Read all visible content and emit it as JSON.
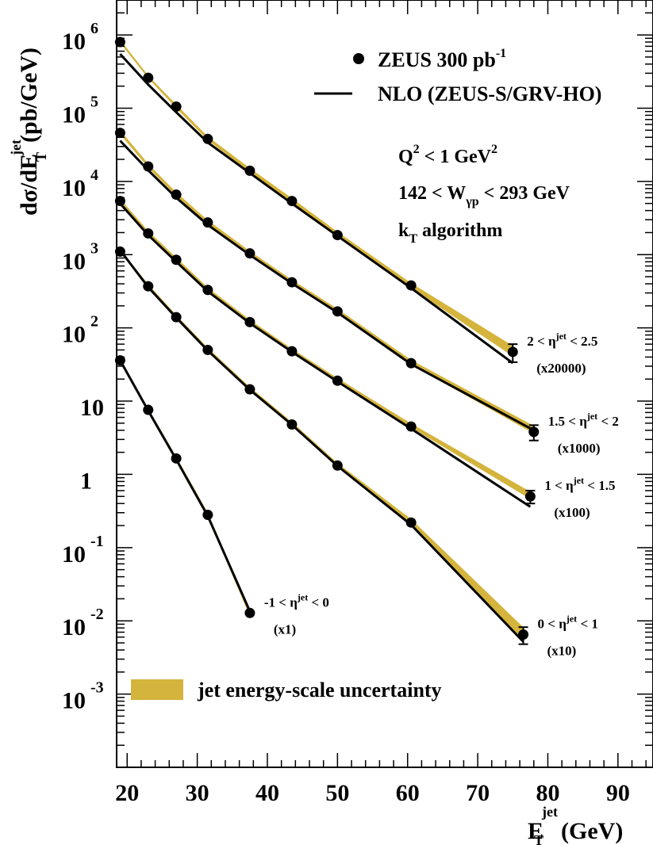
{
  "chart_data": {
    "type": "scatter",
    "y_scale": "log",
    "xlim": [
      18.5,
      95
    ],
    "ylim": [
      0.0001,
      3000000
    ],
    "grid": false,
    "legend_position": "top-right",
    "x_ticks": [
      20,
      30,
      40,
      50,
      60,
      70,
      80,
      90
    ],
    "y_ticks": [
      {
        "base": "10",
        "exp": "6"
      },
      {
        "base": "10",
        "exp": "5"
      },
      {
        "base": "10",
        "exp": "4"
      },
      {
        "base": "10",
        "exp": "3"
      },
      {
        "base": "10",
        "exp": "2"
      },
      {
        "base": "10",
        "exp": ""
      },
      {
        "base": "1",
        "exp": ""
      },
      {
        "base": "10",
        "exp": "-1"
      },
      {
        "base": "10",
        "exp": "-2"
      },
      {
        "base": "10",
        "exp": "-3"
      }
    ],
    "xlabel": {
      "main": "E",
      "sup": "jet",
      "sub": "T",
      "unit": "(GeV)"
    },
    "ylabel": {
      "main": "dσ/dE",
      "sup": "jet",
      "sub": "T",
      "unit": "(pb/GeV)"
    },
    "legend": {
      "data": {
        "text": "ZEUS 300 pb",
        "sup": "-1"
      },
      "line": {
        "text": "NLO (ZEUS-S/GRV-HO)"
      },
      "band": {
        "text": "jet energy-scale uncertainty"
      }
    },
    "notes": {
      "q2": {
        "main": "Q",
        "sup": "2",
        "rest": " < 1 GeV",
        "sup2": "2"
      },
      "w": {
        "main": "142 < W",
        "sub": "γp",
        "rest": " < 293 GeV"
      },
      "alg": {
        "main": "k",
        "sub": "T",
        "rest": " algorithm"
      }
    },
    "colors": {
      "band": "#d4b43c",
      "points": "#000000",
      "line": "#000000"
    },
    "series": [
      {
        "label": {
          "pre": "2 < η",
          "sup": "jet",
          "post": " < 2.5",
          "scale": "(x20000)"
        },
        "x": [
          19,
          23,
          27,
          31.5,
          37.5,
          43.5,
          50,
          60.5,
          75
        ],
        "y": [
          800000,
          260000,
          105000,
          38000,
          14000,
          5400,
          1850,
          380,
          47
        ],
        "err": [
          0,
          0,
          0,
          0,
          0,
          0,
          0,
          0,
          13
        ],
        "nlo": [
          550000,
          210000,
          88000,
          34000,
          13000,
          5000,
          1800,
          350,
          33
        ],
        "band_lo": [
          780000,
          255000,
          100000,
          36500,
          13300,
          5100,
          1750,
          350,
          41
        ],
        "band_hi": [
          860000,
          280000,
          112000,
          41000,
          15200,
          5900,
          2050,
          410,
          57
        ]
      },
      {
        "label": {
          "pre": "1.5 < η",
          "sup": "jet",
          "post": " < 2",
          "scale": "(x1000)"
        },
        "x": [
          19,
          23,
          27,
          31.5,
          37.5,
          43.5,
          50,
          60.5,
          78
        ],
        "y": [
          46000,
          16000,
          6600,
          2750,
          1040,
          420,
          168,
          33,
          3.8
        ],
        "err": [
          0,
          0,
          0,
          0,
          0,
          0,
          0,
          0,
          0.9
        ],
        "nlo": [
          36000,
          14200,
          6000,
          2550,
          990,
          405,
          162,
          32,
          4.0
        ],
        "band_lo": [
          44000,
          15400,
          6300,
          2650,
          1000,
          405,
          162,
          31.5,
          3.6
        ],
        "band_hi": [
          50000,
          17400,
          7100,
          2950,
          1120,
          455,
          182,
          36.5,
          4.6
        ]
      },
      {
        "label": {
          "pre": "1 < η",
          "sup": "jet",
          "post": " < 1.5",
          "scale": "(x100)"
        },
        "x": [
          19,
          23,
          27,
          31.5,
          37.5,
          43.5,
          50,
          60.5,
          77.5
        ],
        "y": [
          5400,
          1950,
          850,
          330,
          120,
          48,
          19,
          4.5,
          0.5
        ],
        "err": [
          0,
          0,
          0,
          0,
          0,
          0,
          0,
          0,
          0.1
        ],
        "nlo": [
          5000,
          1850,
          800,
          315,
          116,
          47,
          18.5,
          4.2,
          0.36
        ],
        "band_lo": [
          5200,
          1880,
          820,
          320,
          116,
          46.5,
          18.4,
          4.35,
          0.46
        ],
        "band_hi": [
          5800,
          2100,
          915,
          355,
          129,
          52,
          20.6,
          4.95,
          0.58
        ]
      },
      {
        "label": {
          "pre": "0 < η",
          "sup": "jet",
          "post": " < 1",
          "scale": "(x10)"
        },
        "x": [
          19,
          23,
          27,
          31.5,
          37.5,
          43.5,
          50,
          60.5,
          76.5
        ],
        "y": [
          1100,
          370,
          140,
          50,
          14.5,
          4.8,
          1.32,
          0.22,
          0.0065
        ],
        "err": [
          0,
          0,
          0,
          0,
          0,
          0,
          0,
          0,
          0.0017
        ],
        "nlo": [
          1150,
          360,
          138,
          49,
          14.3,
          4.75,
          1.3,
          0.205,
          0.0052
        ],
        "band_lo": [
          1070,
          360,
          136,
          48.5,
          14.0,
          4.65,
          1.27,
          0.205,
          0.0055
        ],
        "band_hi": [
          1180,
          395,
          150,
          53.5,
          15.6,
          5.2,
          1.43,
          0.245,
          0.0082
        ]
      },
      {
        "label": {
          "pre": "-1 < η",
          "sup": "jet",
          "post": " < 0",
          "scale": "(x1)"
        },
        "x": [
          19,
          23,
          27,
          31.5,
          37.5
        ],
        "y": [
          36,
          7.6,
          1.65,
          0.28,
          0.0128
        ],
        "err": [
          0,
          0,
          0,
          0,
          0
        ],
        "nlo": [
          36,
          7.4,
          1.6,
          0.27,
          0.0135
        ],
        "band_lo": [
          34.5,
          7.2,
          1.55,
          0.26,
          0.0115
        ],
        "band_hi": [
          38,
          8.0,
          1.75,
          0.3,
          0.0142
        ]
      }
    ]
  }
}
